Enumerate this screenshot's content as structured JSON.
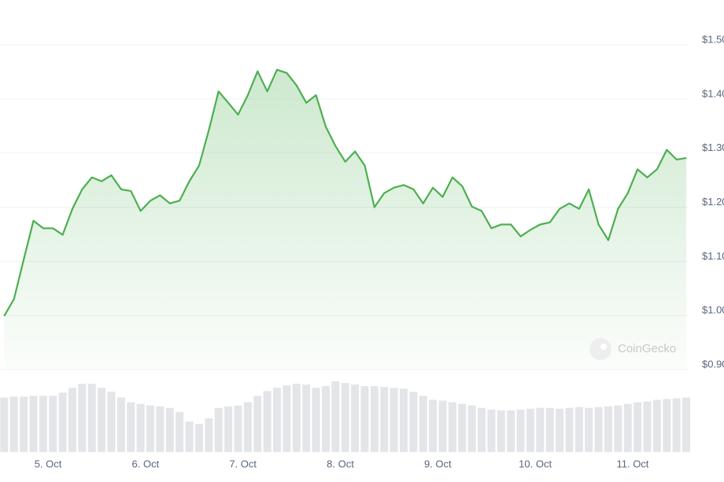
{
  "chart_data": {
    "type": "line",
    "watermark": "CoinGecko",
    "x": [
      4.55,
      4.65,
      4.75,
      4.85,
      4.95,
      5.05,
      5.15,
      5.25,
      5.35,
      5.45,
      5.55,
      5.65,
      5.75,
      5.85,
      5.95,
      6.05,
      6.15,
      6.25,
      6.35,
      6.45,
      6.55,
      6.65,
      6.75,
      6.85,
      6.95,
      7.05,
      7.15,
      7.25,
      7.35,
      7.45,
      7.55,
      7.65,
      7.75,
      7.85,
      7.95,
      8.05,
      8.15,
      8.25,
      8.35,
      8.45,
      8.55,
      8.65,
      8.75,
      8.85,
      8.95,
      9.05,
      9.15,
      9.25,
      9.35,
      9.45,
      9.55,
      9.65,
      9.75,
      9.85,
      9.95,
      10.05,
      10.15,
      10.25,
      10.35,
      10.45,
      10.55,
      10.65,
      10.75,
      10.85,
      10.95,
      11.05,
      11.15,
      11.25,
      11.35,
      11.45,
      11.55
    ],
    "series": [
      {
        "name": "Price",
        "color": "#4caf50",
        "values": [
          0.999,
          1.03,
          1.103,
          1.175,
          1.161,
          1.161,
          1.149,
          1.197,
          1.233,
          1.255,
          1.248,
          1.259,
          1.233,
          1.23,
          1.193,
          1.212,
          1.222,
          1.207,
          1.212,
          1.248,
          1.277,
          1.342,
          1.414,
          1.393,
          1.371,
          1.407,
          1.451,
          1.414,
          1.454,
          1.448,
          1.425,
          1.393,
          1.407,
          1.349,
          1.313,
          1.284,
          1.303,
          1.277,
          1.2,
          1.226,
          1.236,
          1.241,
          1.233,
          1.207,
          1.236,
          1.219,
          1.255,
          1.239,
          1.201,
          1.193,
          1.161,
          1.168,
          1.168,
          1.146,
          1.158,
          1.168,
          1.172,
          1.197,
          1.207,
          1.197,
          1.233,
          1.168,
          1.139,
          1.197,
          1.226,
          1.27,
          1.255,
          1.27,
          1.306,
          1.288,
          1.291
        ]
      },
      {
        "name": "Volume",
        "color": "#e3e5e8",
        "values": [
          68,
          69,
          69,
          70,
          70,
          70,
          74,
          80,
          85,
          85,
          80,
          75,
          68,
          62,
          60,
          58,
          57,
          55,
          50,
          38,
          35,
          42,
          55,
          57,
          58,
          62,
          70,
          76,
          80,
          83,
          85,
          84,
          80,
          82,
          88,
          86,
          84,
          82,
          82,
          81,
          80,
          79,
          75,
          70,
          65,
          64,
          62,
          60,
          58,
          55,
          53,
          52,
          52,
          53,
          54,
          55,
          55,
          54,
          55,
          56,
          55,
          56,
          57,
          58,
          60,
          62,
          63,
          65,
          66,
          67,
          68
        ]
      }
    ],
    "xlim": [
      4.507,
      11.598
    ],
    "xticks": [
      {
        "value": 5,
        "label": "5. Oct"
      },
      {
        "value": 6,
        "label": "6. Oct"
      },
      {
        "value": 7,
        "label": "7. Oct"
      },
      {
        "value": 8,
        "label": "8. Oct"
      },
      {
        "value": 9,
        "label": "9. Oct"
      },
      {
        "value": 10,
        "label": "10. Oct"
      },
      {
        "value": 11,
        "label": "11. Oct"
      }
    ],
    "ylim": [
      0.9,
      1.5
    ],
    "yticks": [
      {
        "value": 1.5,
        "label": "$1.50"
      },
      {
        "value": 1.4,
        "label": "$1.40"
      },
      {
        "value": 1.3,
        "label": "$1.30"
      },
      {
        "value": 1.2,
        "label": "$1.20"
      },
      {
        "value": 1.1,
        "label": "$1.10"
      },
      {
        "value": 1.0,
        "label": "$1.00"
      },
      {
        "value": 0.9,
        "label": "$0.90"
      }
    ],
    "grid": true
  }
}
